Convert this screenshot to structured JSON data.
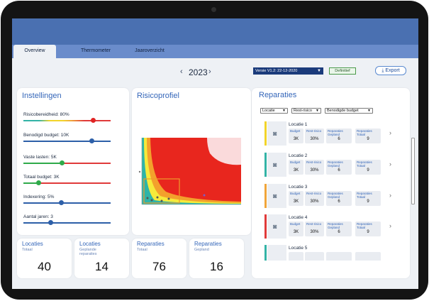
{
  "tabs": [
    {
      "label": "Overview",
      "active": true
    },
    {
      "label": "Thermometer",
      "active": false
    },
    {
      "label": "Jaaroverzicht",
      "active": false
    }
  ],
  "year": "2023",
  "version": "Versie V1.2: 22-12-2020",
  "status_badge": "Definitief",
  "export_label": "Export",
  "settings": {
    "title": "Instellingen",
    "items": [
      {
        "label": "Risicobereidheid: 80%",
        "value_fraction": 0.8
      },
      {
        "label": "Benodigd budget: 10K",
        "value_fraction": 0.78
      },
      {
        "label": "Vaste lasten: 5K",
        "value_fraction": 0.44
      },
      {
        "label": "Totaal budget: 3K",
        "value_fraction": 0.17
      },
      {
        "label": "Indexering: 5%",
        "value_fraction": 0.43
      },
      {
        "label": "Aantal jaren: 3",
        "value_fraction": 0.31
      }
    ]
  },
  "risk": {
    "title": "Risicoprofiel"
  },
  "kpis": [
    {
      "title": "Locaties",
      "subtitle": "Totaal",
      "value": "40"
    },
    {
      "title": "Locaties",
      "subtitle": "Geplande reparaties",
      "value": "14"
    },
    {
      "title": "Reparaties",
      "subtitle": "Totaal",
      "value": "76"
    },
    {
      "title": "Reparaties",
      "subtitle": "Gepland",
      "value": "16"
    }
  ],
  "repairs": {
    "title": "Reparaties",
    "filters": [
      "Locatie",
      "Rest-risico",
      "Benodigde budget"
    ],
    "metric_labels": {
      "budget": "Budget",
      "rest": "Rest-risico",
      "gepland": "Reparaties Gepland",
      "totaal": "Reparaties Totaal"
    },
    "items": [
      {
        "name": "Locatie 1",
        "color": "#f2d42a",
        "budget": "3K",
        "rest": "30%",
        "gepland": "6",
        "totaal": "9"
      },
      {
        "name": "Locatie 2",
        "color": "#33b3a6",
        "budget": "3K",
        "rest": "30%",
        "gepland": "6",
        "totaal": "9"
      },
      {
        "name": "Locatie 3",
        "color": "#f0a53a",
        "budget": "3K",
        "rest": "30%",
        "gepland": "6",
        "totaal": "9"
      },
      {
        "name": "Locatie 4",
        "color": "#e03a3a",
        "budget": "3K",
        "rest": "30%",
        "gepland": "6",
        "totaal": "9"
      },
      {
        "name": "Locatie 5",
        "color": "#33b3a6"
      }
    ]
  }
}
